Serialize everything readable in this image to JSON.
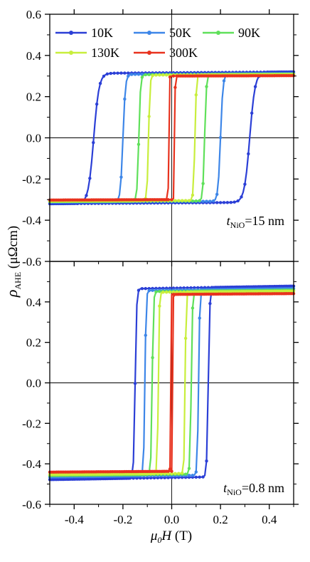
{
  "chart_data": [
    {
      "type": "line",
      "panel": "top",
      "annotation": {
        "prefix": "t",
        "sub": "NiO",
        "suffix": "=15 nm"
      },
      "xlim": [
        -0.5,
        0.5
      ],
      "ylim": [
        -0.6,
        0.6
      ],
      "yticks": [
        -0.6,
        -0.4,
        -0.2,
        0.0,
        0.2,
        0.4,
        0.6
      ],
      "ytick_labels": [
        "-0.6",
        "-0.4",
        "-0.2",
        "0.0",
        "0.2",
        "0.4",
        "0.6"
      ],
      "legend": [
        "10K",
        "50K",
        "90K",
        "130K",
        "300K"
      ],
      "series": [
        {
          "name": "10K",
          "color": "#2b3fd6",
          "Ms": 0.316,
          "Hc": 0.32,
          "w": 0.022,
          "slope": 0.008
        },
        {
          "name": "50K",
          "color": "#3d86e8",
          "Ms": 0.309,
          "Hc": 0.2,
          "w": 0.01,
          "slope": 0.006
        },
        {
          "name": "90K",
          "color": "#5fe05a",
          "Ms": 0.307,
          "Hc": 0.135,
          "w": 0.007,
          "slope": 0.005
        },
        {
          "name": "130K",
          "color": "#c8ee3c",
          "Ms": 0.305,
          "Hc": 0.095,
          "w": 0.006,
          "slope": 0.005
        },
        {
          "name": "300K",
          "color": "#e8321e",
          "Ms": 0.3,
          "Hc": 0.012,
          "w": 0.002,
          "slope": 0.004
        }
      ]
    },
    {
      "type": "line",
      "panel": "bottom",
      "annotation": {
        "prefix": "t",
        "sub": "NiO",
        "suffix": "=0.8 nm"
      },
      "xlim": [
        -0.5,
        0.5
      ],
      "ylim": [
        -0.6,
        0.6
      ],
      "yticks": [
        -0.6,
        -0.4,
        -0.2,
        0.0,
        0.2,
        0.4
      ],
      "ytick_labels": [
        "-0.6",
        "-0.4",
        "-0.2",
        "0.0",
        "0.2",
        "0.4"
      ],
      "xticks": [
        -0.4,
        -0.2,
        0.0,
        0.2,
        0.4
      ],
      "xtick_labels": [
        "-0.4",
        "-0.2",
        "0.0",
        "0.2",
        "0.4"
      ],
      "xlabel": {
        "italic": "μ",
        "sub": "0",
        "italic2": "H",
        "rest": " (T)"
      },
      "ylabel": {
        "italic": "ρ",
        "sub": "AHE",
        "rest": " (μΩcm)"
      },
      "series": [
        {
          "name": "10K",
          "color": "#2b3fd6",
          "Ms": 0.468,
          "Hc": 0.15,
          "w": 0.006,
          "slope": 0.02
        },
        {
          "name": "50K",
          "color": "#3d86e8",
          "Ms": 0.458,
          "Hc": 0.11,
          "w": 0.005,
          "slope": 0.015
        },
        {
          "name": "90K",
          "color": "#5fe05a",
          "Ms": 0.452,
          "Hc": 0.08,
          "w": 0.005,
          "slope": 0.012
        },
        {
          "name": "130K",
          "color": "#c8ee3c",
          "Ms": 0.448,
          "Hc": 0.055,
          "w": 0.004,
          "slope": 0.01
        },
        {
          "name": "300K",
          "color": "#e8321e",
          "Ms": 0.437,
          "Hc": 0.005,
          "w": 0.001,
          "slope": 0.008
        }
      ]
    }
  ]
}
